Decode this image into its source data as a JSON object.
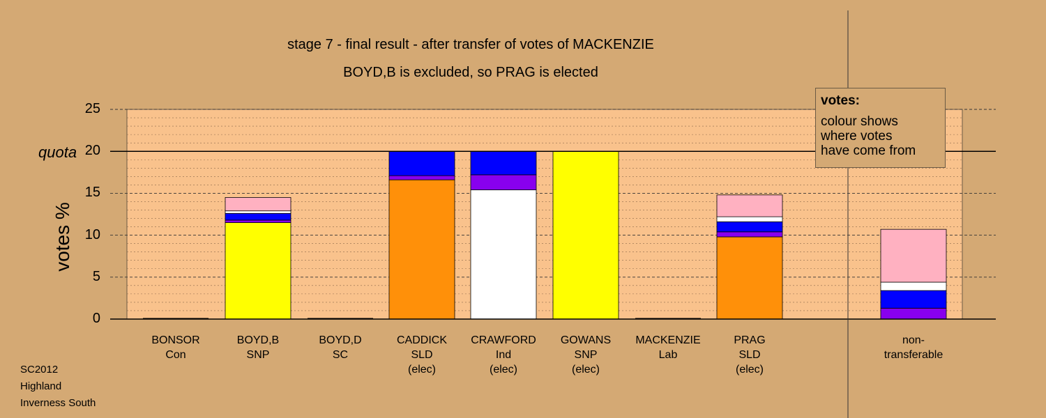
{
  "titles": {
    "line1": "stage 7 - final result - after transfer of votes of MACKENZIE",
    "line2": "BOYD,B is excluded, so PRAG is elected"
  },
  "legend": {
    "title": "votes:",
    "lines": [
      "colour shows",
      "where votes",
      "have come from"
    ]
  },
  "meta": [
    "SC2012",
    "Highland",
    "Inverness South"
  ],
  "colors": {
    "background": "#d4a974",
    "plot_background": "#f9c28c",
    "SNP": "#ffff00",
    "SLD": "#ff9009",
    "Ind": "#ffffff",
    "Lab": "#ffb1c1",
    "Con": "#0000ff",
    "SC": "#8800ee"
  },
  "chart_data": {
    "type": "bar",
    "stacked": true,
    "ylabel": "votes %",
    "ylim": [
      0,
      25
    ],
    "yticks": [
      "0",
      "5",
      "10",
      "15",
      "20",
      "25"
    ],
    "quota_value": 20,
    "quota_label": "quota",
    "grid": true,
    "categories": [
      {
        "name": "BONSOR",
        "party": "Con",
        "status": ""
      },
      {
        "name": "BOYD,B",
        "party": "SNP",
        "status": ""
      },
      {
        "name": "BOYD,D",
        "party": "SC",
        "status": ""
      },
      {
        "name": "CADDICK",
        "party": "SLD",
        "status": "(elec)"
      },
      {
        "name": "CRAWFORD",
        "party": "Ind",
        "status": "(elec)"
      },
      {
        "name": "GOWANS",
        "party": "SNP",
        "status": "(elec)"
      },
      {
        "name": "MACKENZIE",
        "party": "Lab",
        "status": ""
      },
      {
        "name": "PRAG",
        "party": "SLD",
        "status": "(elec)"
      },
      {
        "name": "non-",
        "party": "transferable",
        "status": ""
      }
    ],
    "bars": [
      [],
      [
        {
          "from": "SNP",
          "value": 11.5
        },
        {
          "from": "SC",
          "value": 0.3
        },
        {
          "from": "Con",
          "value": 0.8
        },
        {
          "from": "Ind",
          "value": 0.3
        },
        {
          "from": "Lab",
          "value": 1.6
        }
      ],
      [],
      [
        {
          "from": "SLD",
          "value": 16.6
        },
        {
          "from": "SC",
          "value": 0.5
        },
        {
          "from": "Con",
          "value": 2.9
        }
      ],
      [
        {
          "from": "Ind",
          "value": 15.4
        },
        {
          "from": "SC",
          "value": 1.8
        },
        {
          "from": "Con",
          "value": 2.8
        }
      ],
      [
        {
          "from": "SNP",
          "value": 20.0
        }
      ],
      [],
      [
        {
          "from": "SLD",
          "value": 9.8
        },
        {
          "from": "SC",
          "value": 0.6
        },
        {
          "from": "Con",
          "value": 1.2
        },
        {
          "from": "Ind",
          "value": 0.6
        },
        {
          "from": "Lab",
          "value": 2.6
        }
      ],
      [
        {
          "from": "SC",
          "value": 1.3
        },
        {
          "from": "Con",
          "value": 2.1
        },
        {
          "from": "Ind",
          "value": 1.0
        },
        {
          "from": "Lab",
          "value": 6.3
        }
      ]
    ]
  }
}
